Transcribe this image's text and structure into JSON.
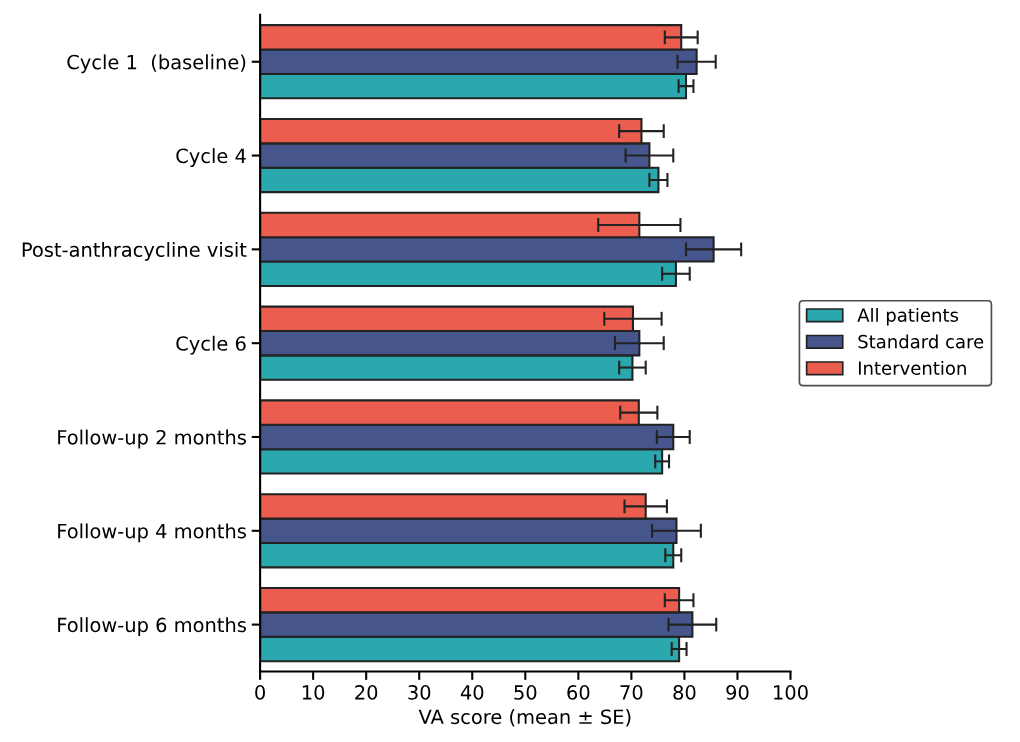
{
  "chart_data": {
    "type": "bar",
    "orientation": "horizontal",
    "xlabel": "VA score (mean ± SE)",
    "categories": [
      "Cycle 1  (baseline)",
      "Cycle 4",
      "Post-anthracycline visit",
      "Cycle 6",
      "Follow-up 2 months",
      "Follow-up 4 months",
      "Follow-up 6 months"
    ],
    "series": [
      {
        "name": "All patients",
        "color": "#2aa8ad",
        "values": [
          80.3,
          75.1,
          78.4,
          70.2,
          75.8,
          77.9,
          79.0
        ],
        "errors": [
          1.4,
          1.7,
          2.6,
          2.5,
          1.3,
          1.5,
          1.4
        ]
      },
      {
        "name": "Standard care",
        "color": "#46568c",
        "values": [
          82.3,
          73.4,
          85.5,
          71.5,
          77.9,
          78.5,
          81.5
        ],
        "errors": [
          3.6,
          4.5,
          5.2,
          4.6,
          3.1,
          4.6,
          4.5
        ]
      },
      {
        "name": "Intervention",
        "color": "#eb5e4f",
        "values": [
          79.4,
          71.9,
          71.5,
          70.3,
          71.4,
          72.7,
          79.0
        ],
        "errors": [
          3.1,
          4.2,
          7.75,
          5.4,
          3.5,
          4.0,
          2.7
        ]
      }
    ],
    "xlim": [
      0,
      100
    ],
    "xticks": [
      0,
      10,
      20,
      30,
      40,
      50,
      60,
      70,
      80,
      90,
      100
    ],
    "grid": false,
    "legend": "right"
  }
}
